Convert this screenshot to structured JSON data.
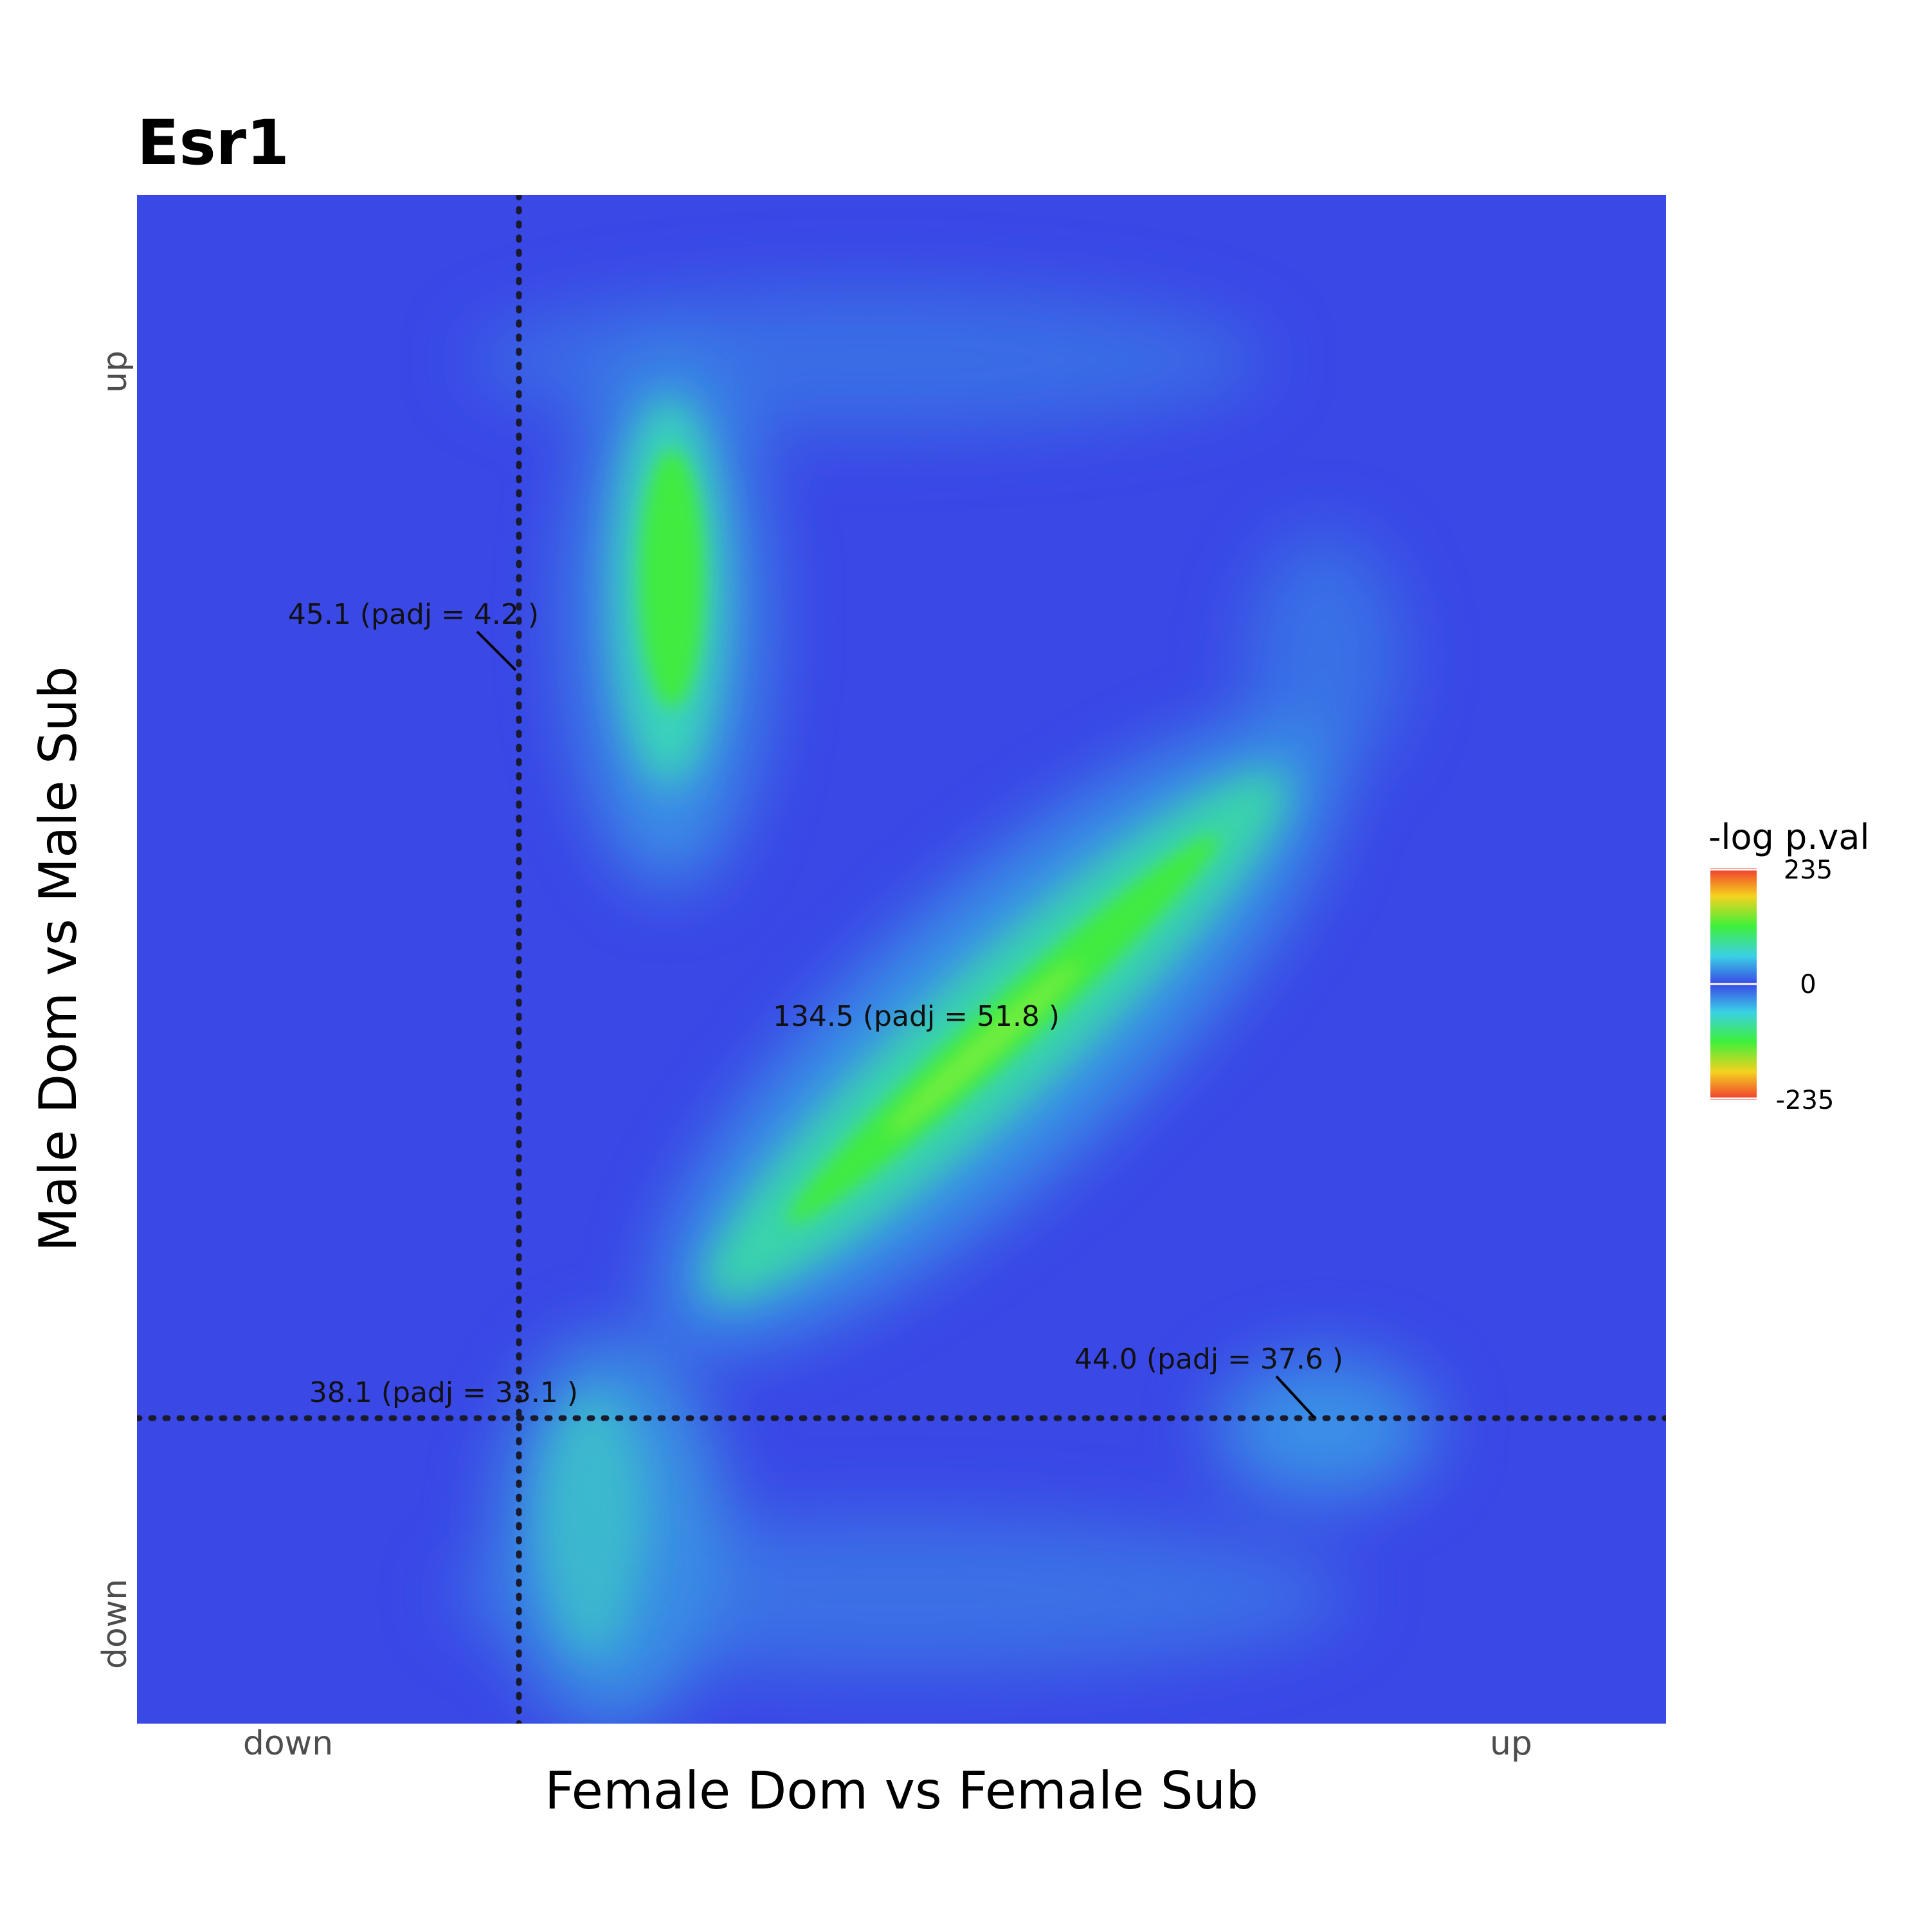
{
  "chart_data": {
    "type": "heatmap",
    "title": "Esr1",
    "xlabel": "Female Dom vs Female Sub",
    "ylabel": "Male Dom vs Male Sub",
    "x_ticks": [
      "down",
      "up"
    ],
    "y_ticks": [
      "down",
      "up"
    ],
    "legend": {
      "title": "-log p.val",
      "max_label": "235",
      "mid_label": "0",
      "min_label": "-235",
      "max": 235,
      "min": -235,
      "placement": "right"
    },
    "colors": {
      "background": "#3a48e6",
      "scale": [
        "#f03a2e",
        "#f5d21e",
        "#3ef03a",
        "#3ad0e6",
        "#3a48e6"
      ]
    },
    "threshold_lines": {
      "x_fraction": 0.25,
      "y_fraction": 0.2
    },
    "annotations": [
      {
        "label": "45.1 (padj = 4.2 )",
        "quadrant": "top-left"
      },
      {
        "label": "134.5 (padj = 51.8 )",
        "quadrant": "top-right"
      },
      {
        "label": "38.1 (padj = 33.1 )",
        "quadrant": "bottom-left"
      },
      {
        "label": "44.0 (padj = 37.6 )",
        "quadrant": "bottom-right"
      }
    ]
  }
}
